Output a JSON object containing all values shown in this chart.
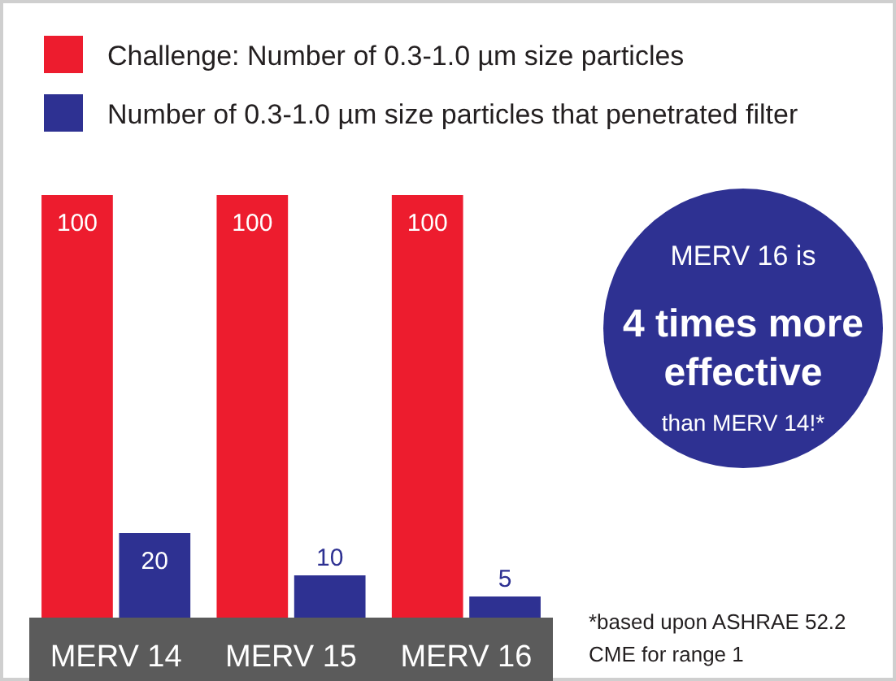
{
  "chart_data": {
    "type": "bar",
    "categories": [
      "MERV 14",
      "MERV 15",
      "MERV 16"
    ],
    "series": [
      {
        "name": "Challenge: Number of 0.3-1.0 µm size particles",
        "color": "#ed1c2e",
        "values": [
          100,
          100,
          100
        ]
      },
      {
        "name": "Number of 0.3-1.0 µm size particles that penetrated filter",
        "color": "#2e3192",
        "values": [
          20,
          10,
          5
        ]
      }
    ],
    "data_labels": true,
    "legend": "top",
    "grid": false,
    "annotations": [
      "MERV 16 is",
      "4 times more",
      "effective",
      "than MERV 14!*",
      "*based upon ASHRAE 52.2",
      "CME for range 1"
    ]
  }
}
